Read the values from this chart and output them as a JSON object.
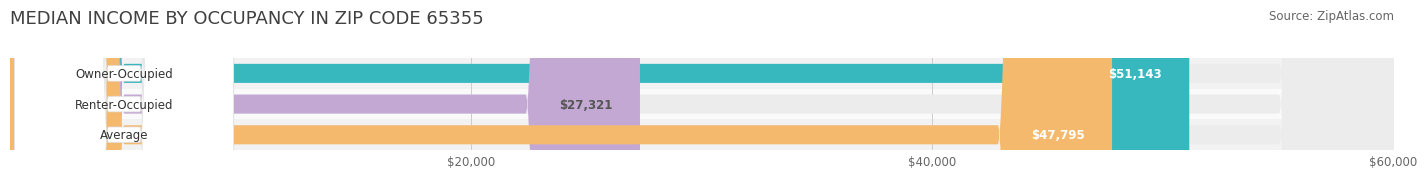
{
  "title": "MEDIAN INCOME BY OCCUPANCY IN ZIP CODE 65355",
  "source": "Source: ZipAtlas.com",
  "categories": [
    "Owner-Occupied",
    "Renter-Occupied",
    "Average"
  ],
  "values": [
    51143,
    27321,
    47795
  ],
  "bar_colors": [
    "#36b8be",
    "#c4a8d4",
    "#f5b96e"
  ],
  "bar_bg_color": "#ececec",
  "bar_labels": [
    "$51,143",
    "$27,321",
    "$47,795"
  ],
  "label_inside_colors": [
    "white",
    "#555555",
    "white"
  ],
  "xlim": [
    0,
    60000
  ],
  "xticks": [
    20000,
    40000,
    60000
  ],
  "xticklabels": [
    "$20,000",
    "$40,000",
    "$60,000"
  ],
  "background_color": "#ffffff",
  "row_bg_colors": [
    "#f2f2f2",
    "#fafafa",
    "#f2f2f2"
  ],
  "title_fontsize": 13,
  "source_fontsize": 8.5,
  "label_fontsize": 8.5,
  "cat_fontsize": 8.5,
  "tick_fontsize": 8.5,
  "bar_height": 0.62
}
